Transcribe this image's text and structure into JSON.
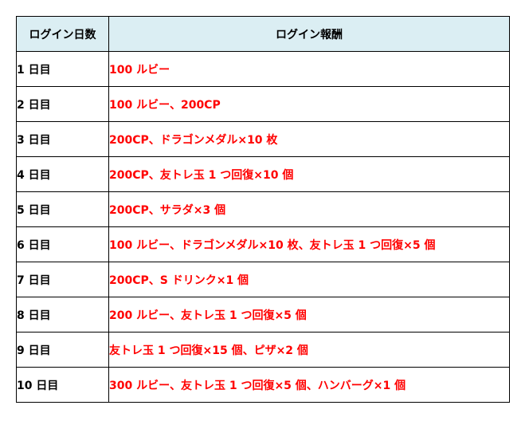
{
  "colors": {
    "header_bg": "#dbeef3",
    "reward_text": "#ff0000",
    "border": "#000000"
  },
  "table": {
    "headers": {
      "day": "ログイン日数",
      "reward": "ログイン報酬"
    },
    "rows": [
      {
        "day": "1 日目",
        "reward": "100 ルビー"
      },
      {
        "day": "2 日目",
        "reward": "100 ルビー、200CP"
      },
      {
        "day": "3 日目",
        "reward": "200CP、ドラゴンメダル×10 枚"
      },
      {
        "day": "4 日目",
        "reward": "200CP、友トレ玉 1 つ回復×10 個"
      },
      {
        "day": "5 日目",
        "reward": "200CP、サラダ×3 個"
      },
      {
        "day": "6 日目",
        "reward": "100 ルビー、ドラゴンメダル×10 枚、友トレ玉 1 つ回復×5 個"
      },
      {
        "day": "7 日目",
        "reward": "200CP、S ドリンク×1 個"
      },
      {
        "day": "8 日目",
        "reward": "200 ルビー、友トレ玉 1 つ回復×5 個"
      },
      {
        "day": "9 日目",
        "reward": "友トレ玉 1 つ回復×15 個、ピザ×2 個"
      },
      {
        "day": "10 日目",
        "reward": "300 ルビー、友トレ玉 1 つ回復×5 個、ハンバーグ×1 個"
      }
    ]
  }
}
